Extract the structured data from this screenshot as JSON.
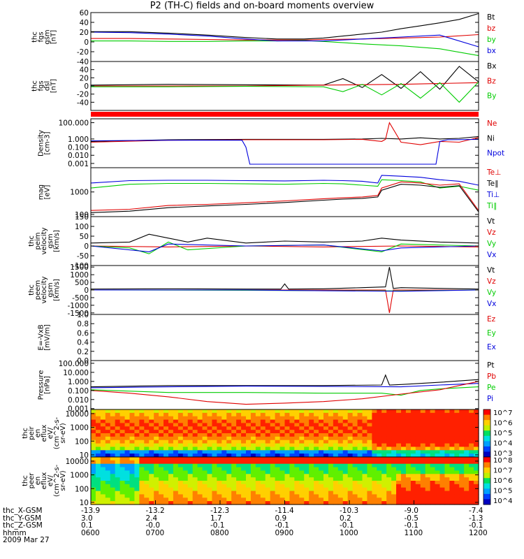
{
  "title": "P2 (TH-C) fields and on-board moments overview",
  "colors": {
    "black": "#000000",
    "red": "#e00000",
    "green": "#00cc00",
    "blue": "#0000dd"
  },
  "chart_data": [
    {
      "id": "p1",
      "type": "line",
      "ylabel": [
        "thc",
        "fgs",
        "gsm",
        "[nT]"
      ],
      "ylim": [
        -40,
        60
      ],
      "yticks": [
        "60",
        "40",
        "20",
        "0",
        "-20",
        "-40"
      ],
      "ytickvals": [
        60,
        40,
        20,
        0,
        -20,
        -40
      ],
      "legend": [
        {
          "name": "Bt",
          "color": "#000000"
        },
        {
          "name": "bz",
          "color": "#e00000"
        },
        {
          "name": "by",
          "color": "#00cc00"
        },
        {
          "name": "bx",
          "color": "#0000dd"
        }
      ],
      "series": [
        {
          "name": "Bt",
          "x": [
            0,
            10,
            20,
            30,
            40,
            48,
            55,
            60,
            65,
            70,
            75,
            80,
            85,
            90,
            95,
            100
          ],
          "y": [
            21,
            21,
            18,
            14,
            9,
            6,
            6,
            8,
            12,
            16,
            20,
            27,
            33,
            39,
            46,
            58
          ]
        },
        {
          "name": "bz",
          "x": [
            0,
            10,
            20,
            30,
            40,
            48,
            55,
            60,
            70,
            80,
            90,
            100
          ],
          "y": [
            7,
            7,
            6,
            5,
            4,
            4,
            4,
            5,
            6,
            8,
            10,
            15
          ]
        },
        {
          "name": "by",
          "x": [
            0,
            10,
            20,
            30,
            40,
            48,
            55,
            60,
            70,
            80,
            90,
            100
          ],
          "y": [
            2,
            2,
            1,
            1,
            2,
            2,
            3,
            1,
            -4,
            -8,
            -14,
            -28
          ]
        },
        {
          "name": "bx",
          "x": [
            0,
            10,
            20,
            30,
            40,
            48,
            55,
            60,
            70,
            80,
            90,
            100
          ],
          "y": [
            20,
            19,
            16,
            12,
            6,
            2,
            2,
            2,
            6,
            10,
            14,
            -10
          ]
        }
      ]
    },
    {
      "id": "p2",
      "type": "line",
      "ylabel": [
        "thc",
        "fgs",
        "dsl",
        "[nT]"
      ],
      "ylim": [
        -60,
        60
      ],
      "yticks": [
        "40",
        "20",
        "0",
        "-20",
        "-40"
      ],
      "ytickvals": [
        40,
        20,
        0,
        -20,
        -40
      ],
      "legend": [
        {
          "name": "Bx",
          "color": "#000000"
        },
        {
          "name": "Bz",
          "color": "#e00000"
        },
        {
          "name": "By",
          "color": "#00cc00"
        }
      ],
      "series": [
        {
          "name": "Bx",
          "x": [
            0,
            20,
            40,
            60,
            65,
            70,
            75,
            80,
            85,
            90,
            95,
            100
          ],
          "y": [
            2,
            4,
            3,
            2,
            18,
            -4,
            28,
            -6,
            35,
            -8,
            48,
            10
          ]
        },
        {
          "name": "Bz",
          "x": [
            0,
            20,
            40,
            60,
            80,
            100
          ],
          "y": [
            0,
            0,
            0,
            2,
            4,
            8
          ]
        },
        {
          "name": "By",
          "x": [
            0,
            20,
            40,
            60,
            65,
            70,
            75,
            80,
            85,
            90,
            95,
            100
          ],
          "y": [
            -2,
            -2,
            -1,
            -2,
            -14,
            4,
            -22,
            6,
            -30,
            8,
            -40,
            10
          ]
        }
      ]
    },
    {
      "id": "p3",
      "type": "line",
      "ylabel": [
        "Density",
        "[cm-3]"
      ],
      "ylog": true,
      "ylim": [
        0.0003,
        300
      ],
      "yticks": [
        "100.000",
        "1.000",
        "0.100",
        "0.010",
        "0.001"
      ],
      "ytickvals": [
        100,
        1,
        0.1,
        0.01,
        0.001
      ],
      "legend": [
        {
          "name": "Ne",
          "color": "#e00000"
        },
        {
          "name": "Ni",
          "color": "#000000"
        },
        {
          "name": "Npot",
          "color": "#0000dd"
        }
      ],
      "series": [
        {
          "name": "Ni",
          "x": [
            0,
            20,
            40,
            60,
            70,
            75,
            80,
            85,
            90,
            95,
            100
          ],
          "y": [
            0.5,
            0.8,
            0.9,
            0.9,
            1.0,
            1.2,
            1.0,
            1.4,
            1.0,
            1.2,
            2.0
          ]
        },
        {
          "name": "Ne",
          "x": [
            0,
            20,
            40,
            60,
            70,
            75,
            76,
            77,
            80,
            85,
            90,
            95,
            100
          ],
          "y": [
            0.4,
            0.7,
            0.8,
            0.8,
            0.9,
            0.5,
            0.9,
            100,
            0.4,
            0.2,
            0.5,
            0.4,
            1.5
          ]
        },
        {
          "name": "Npot",
          "x": [
            0,
            20,
            39,
            40,
            41,
            60,
            80,
            89,
            90,
            92,
            100
          ],
          "y": [
            0.6,
            0.7,
            0.7,
            0.1,
            0.0008,
            0.0008,
            0.0008,
            0.0008,
            0.5,
            0.8,
            0.9
          ]
        }
      ]
    },
    {
      "id": "p4",
      "type": "line",
      "ylabel": [
        "mag",
        "[eV]"
      ],
      "ylog": true,
      "ylim": [
        80,
        12000
      ],
      "yticks": [
        "1000",
        "100"
      ],
      "ytickvals": [
        1000,
        100
      ],
      "legend": [
        {
          "name": "Te⊥",
          "color": "#e00000"
        },
        {
          "name": "Te∥",
          "color": "#000000"
        },
        {
          "name": "Ti⊥",
          "color": "#0000dd"
        },
        {
          "name": "Ti∥",
          "color": "#00cc00"
        }
      ],
      "series": [
        {
          "name": "Ti⊥",
          "x": [
            0,
            10,
            20,
            30,
            40,
            50,
            60,
            65,
            70,
            74,
            75,
            80,
            85,
            90,
            95,
            100
          ],
          "y": [
            2500,
            3200,
            3300,
            3300,
            3200,
            3100,
            3300,
            3200,
            3000,
            2500,
            5500,
            5000,
            4500,
            3500,
            3000,
            2000
          ]
        },
        {
          "name": "Ti∥",
          "x": [
            0,
            10,
            20,
            30,
            40,
            50,
            60,
            65,
            70,
            74,
            75,
            80,
            85,
            90,
            95,
            100
          ],
          "y": [
            1500,
            2200,
            2400,
            2400,
            2300,
            2200,
            2400,
            2300,
            2000,
            1800,
            3500,
            3200,
            2800,
            1500,
            1800,
            1200
          ]
        },
        {
          "name": "Te⊥",
          "x": [
            0,
            10,
            20,
            30,
            40,
            50,
            60,
            65,
            70,
            74,
            75,
            80,
            85,
            90,
            95,
            100
          ],
          "y": [
            150,
            170,
            250,
            280,
            330,
            400,
            500,
            550,
            600,
            700,
            1500,
            2800,
            2500,
            2000,
            2300,
            150
          ]
        },
        {
          "name": "Te∥",
          "x": [
            0,
            10,
            20,
            30,
            40,
            50,
            60,
            65,
            70,
            74,
            75,
            80,
            85,
            90,
            95,
            100
          ],
          "y": [
            120,
            140,
            200,
            240,
            280,
            340,
            430,
            480,
            520,
            600,
            1200,
            2200,
            2000,
            1600,
            1900,
            130
          ]
        }
      ]
    },
    {
      "id": "p5",
      "type": "line",
      "ylabel": [
        "thc",
        "peim",
        "velocity",
        "gsm",
        "[km/s]"
      ],
      "ylim": [
        -100,
        150
      ],
      "yticks": [
        "150",
        "100",
        "50",
        "0",
        "-50",
        "-100"
      ],
      "ytickvals": [
        150,
        100,
        50,
        0,
        -50,
        -100
      ],
      "legend": [
        {
          "name": "Vt",
          "color": "#000000"
        },
        {
          "name": "Vz",
          "color": "#e00000"
        },
        {
          "name": "Vy",
          "color": "#00cc00"
        },
        {
          "name": "Vx",
          "color": "#0000dd"
        }
      ],
      "series": [
        {
          "name": "Vt",
          "x": [
            0,
            10,
            15,
            20,
            25,
            30,
            40,
            50,
            60,
            70,
            75,
            80,
            90,
            100
          ],
          "y": [
            15,
            20,
            60,
            40,
            20,
            40,
            15,
            25,
            20,
            25,
            40,
            30,
            20,
            15
          ]
        },
        {
          "name": "Vz",
          "x": [
            0,
            20,
            40,
            60,
            80,
            100
          ],
          "y": [
            0,
            -5,
            0,
            -5,
            0,
            -5
          ]
        },
        {
          "name": "Vy",
          "x": [
            0,
            10,
            15,
            20,
            25,
            40,
            60,
            75,
            80,
            100
          ],
          "y": [
            0,
            -10,
            -40,
            20,
            -20,
            0,
            5,
            -30,
            10,
            0
          ]
        },
        {
          "name": "Vx",
          "x": [
            0,
            15,
            20,
            40,
            60,
            75,
            80,
            100
          ],
          "y": [
            0,
            -30,
            10,
            0,
            5,
            -25,
            -10,
            0
          ]
        }
      ]
    },
    {
      "id": "p6",
      "type": "line",
      "ylabel": [
        "thc",
        "peem",
        "velocity",
        "gsm",
        "[km/s]"
      ],
      "ylim": [
        -1600,
        1600
      ],
      "yticks": [
        "1500",
        "1000",
        "500",
        "0",
        "-500",
        "-1000",
        "-1500"
      ],
      "ytickvals": [
        1500,
        1000,
        500,
        0,
        -500,
        -1000,
        -1500
      ],
      "legend": [
        {
          "name": "Vt",
          "color": "#000000"
        },
        {
          "name": "Vz",
          "color": "#e00000"
        },
        {
          "name": "Vy",
          "color": "#00cc00"
        },
        {
          "name": "Vx",
          "color": "#0000dd"
        }
      ],
      "series": [
        {
          "name": "Vt",
          "x": [
            0,
            20,
            40,
            49,
            50,
            51,
            60,
            70,
            76,
            77,
            78,
            80,
            100
          ],
          "y": [
            60,
            80,
            60,
            60,
            400,
            60,
            80,
            150,
            200,
            1500,
            100,
            150,
            60
          ]
        },
        {
          "name": "Vz",
          "x": [
            0,
            40,
            76,
            77,
            78,
            100
          ],
          "y": [
            0,
            0,
            0,
            -1500,
            0,
            0
          ]
        },
        {
          "name": "Vy",
          "x": [
            0,
            40,
            60,
            80,
            100
          ],
          "y": [
            0,
            -20,
            -40,
            -60,
            0
          ]
        },
        {
          "name": "Vx",
          "x": [
            0,
            40,
            60,
            80,
            100
          ],
          "y": [
            0,
            0,
            -50,
            -80,
            0
          ]
        }
      ]
    },
    {
      "id": "p7",
      "type": "line",
      "ylabel": [
        "E=-VxB",
        "[mV/m]"
      ],
      "ylim": [
        0,
        1
      ],
      "yticks": [
        "1.0",
        "0.8",
        "0.6",
        "0.4",
        "0.2",
        "0.0"
      ],
      "ytickvals": [
        1.0,
        0.8,
        0.6,
        0.4,
        0.2,
        0.0
      ],
      "legend": [
        {
          "name": "Ez",
          "color": "#e00000"
        },
        {
          "name": "Ey",
          "color": "#00cc00"
        },
        {
          "name": "Ex",
          "color": "#0000dd"
        }
      ],
      "series": []
    },
    {
      "id": "p8",
      "type": "line",
      "ylabel": [
        "Pressure",
        "[nPa]"
      ],
      "ylog": true,
      "ylim": [
        0.0008,
        200
      ],
      "yticks": [
        "100.000",
        "10.000",
        "1.000",
        "0.100",
        "0.010",
        "0.001"
      ],
      "ytickvals": [
        100,
        10,
        1,
        0.1,
        0.01,
        0.001
      ],
      "legend": [
        {
          "name": "Pt",
          "color": "#000000"
        },
        {
          "name": "Pb",
          "color": "#e00000"
        },
        {
          "name": "Pe",
          "color": "#00cc00"
        },
        {
          "name": "Pi",
          "color": "#0000dd"
        }
      ],
      "series": [
        {
          "name": "Pt",
          "x": [
            0,
            20,
            40,
            60,
            75,
            76,
            77,
            80,
            90,
            100
          ],
          "y": [
            0.25,
            0.35,
            0.35,
            0.35,
            0.4,
            5,
            0.4,
            0.45,
            0.8,
            1.6
          ]
        },
        {
          "name": "Pi",
          "x": [
            0,
            20,
            40,
            60,
            80,
            90,
            100
          ],
          "y": [
            0.2,
            0.25,
            0.3,
            0.28,
            0.25,
            0.4,
            0.6
          ]
        },
        {
          "name": "Pe",
          "x": [
            0,
            20,
            40,
            60,
            75,
            80,
            85,
            90,
            100
          ],
          "y": [
            0.12,
            0.06,
            0.06,
            0.05,
            0.05,
            0.03,
            0.1,
            0.15,
            0.25
          ]
        },
        {
          "name": "Pb",
          "x": [
            0,
            10,
            20,
            30,
            40,
            50,
            60,
            70,
            80,
            90,
            100
          ],
          "y": [
            0.1,
            0.05,
            0.02,
            0.006,
            0.003,
            0.004,
            0.006,
            0.012,
            0.04,
            0.12,
            1.0
          ]
        }
      ]
    },
    {
      "id": "p9",
      "type": "heatmap",
      "ylabel": [
        "thc",
        "peir",
        "en",
        "eflux",
        "eV/",
        "(cm^2-s-",
        "sr-eV)"
      ],
      "ylog": true,
      "ylim": [
        7,
        20000
      ],
      "yticks": [
        "10000",
        "1000",
        "100",
        "10"
      ],
      "ytickvals": [
        10000,
        1000,
        100,
        10
      ],
      "colorbar_labels": [
        "10^7",
        "10^6",
        "10^5",
        "10^4",
        "10^3"
      ]
    },
    {
      "id": "p10",
      "type": "heatmap",
      "ylabel": [
        "thc",
        "peer",
        "en",
        "eflux",
        "eV/",
        "(cm^2-s-",
        "sr-eV)"
      ],
      "ylog": true,
      "ylim": [
        7,
        20000
      ],
      "yticks": [
        "10000",
        "1000",
        "100",
        "10"
      ],
      "ytickvals": [
        10000,
        1000,
        100,
        10
      ],
      "colorbar_labels": [
        "10^8",
        "10^7",
        "10^6",
        "10^5",
        "10^4"
      ]
    }
  ],
  "footer": {
    "rows": [
      {
        "label": "thc_X-GSM",
        "values": [
          "-13.9",
          "-13.2",
          "-12.3",
          "-11.4",
          "-10.3",
          "-9.0",
          "-7.4"
        ]
      },
      {
        "label": "thc_Y-GSM",
        "values": [
          "3.0",
          "2.4",
          "1.7",
          "0.9",
          "0.2",
          "-0.5",
          "-1.3"
        ]
      },
      {
        "label": "thc_Z-GSM",
        "values": [
          "0.1",
          "-0.0",
          "-0.1",
          "-0.1",
          "-0.1",
          "-0.1",
          "-0.1"
        ]
      },
      {
        "label": "hhmm",
        "values": [
          "0600",
          "0700",
          "0800",
          "0900",
          "1000",
          "1100",
          "1200"
        ]
      }
    ],
    "date": "2009 Mar 27"
  }
}
